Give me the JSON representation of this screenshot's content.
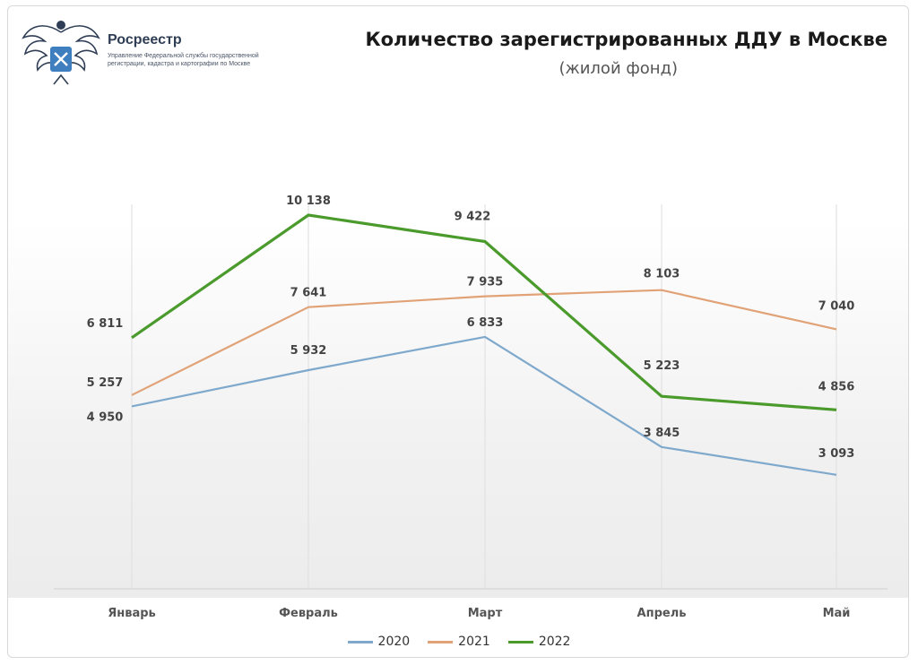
{
  "header": {
    "org_name": "Росреестр",
    "org_subtitle": "Управление Федеральной службы государственной регистрации, кадастра и картографии по Москве",
    "title": "Количество зарегистрированных ДДУ в Москве",
    "subtitle": "(жилой фонд)"
  },
  "chart_data": {
    "type": "line",
    "title": "Количество зарегистрированных ДДУ в Москве",
    "subtitle": "(жилой фонд)",
    "categories": [
      "Январь",
      "Февраль",
      "Март",
      "Апрель",
      "Май"
    ],
    "series": [
      {
        "name": "2020",
        "color": "#7fa9cc",
        "values": [
          4950,
          5932,
          6833,
          3845,
          3093
        ],
        "labels": [
          "4 950",
          "5 932",
          "6 833",
          "3 845",
          "3 093"
        ]
      },
      {
        "name": "2021",
        "color": "#e0a276",
        "values": [
          5257,
          7641,
          7935,
          8103,
          7040
        ],
        "labels": [
          "5 257",
          "7 641",
          "7 935",
          "8 103",
          "7 040"
        ]
      },
      {
        "name": "2022",
        "color": "#4a9a2c",
        "values": [
          6811,
          10138,
          9422,
          5223,
          4856
        ],
        "labels": [
          "6 811",
          "10 138",
          "9 422",
          "5 223",
          "4 856"
        ]
      }
    ],
    "ylim": [
      0,
      11000
    ],
    "grid": "vertical",
    "legend": "bottom"
  }
}
